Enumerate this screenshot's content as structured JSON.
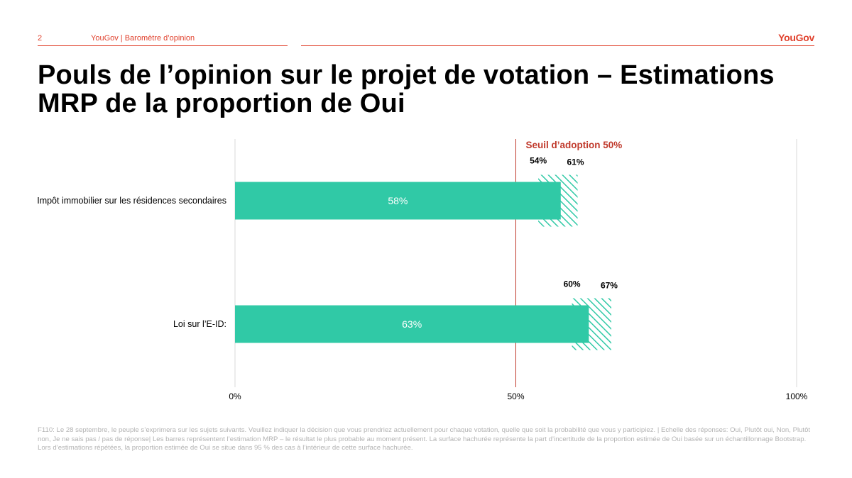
{
  "header": {
    "page_number": "2",
    "section": "YouGov | Baromètre d’opinion",
    "logo": "YouGov"
  },
  "title": "Pouls de l’opinion sur le projet de votation – Estimations MRP de la proportion de Oui",
  "colors": {
    "accent": "#e0402c",
    "bar": "#30c9a6",
    "threshold": "#c0392b",
    "grid": "#d9d9d9"
  },
  "chart_data": {
    "type": "bar",
    "orientation": "horizontal",
    "categories": [
      "Impôt immobilier sur les résidences secondaires",
      "Loi sur l’E-ID:"
    ],
    "values": [
      58,
      63
    ],
    "value_labels": [
      "58%",
      "63%"
    ],
    "interval_low": [
      54,
      60
    ],
    "interval_high": [
      61,
      67
    ],
    "interval_low_labels": [
      "54%",
      "60%"
    ],
    "interval_high_labels": [
      "61%",
      "67%"
    ],
    "xlim": [
      0,
      100
    ],
    "xticks": [
      0,
      50,
      100
    ],
    "xtick_labels": [
      "0%",
      "50%",
      "100%"
    ],
    "threshold": {
      "value": 50,
      "label": "Seuil d’adoption 50%"
    },
    "grid": true
  },
  "footnote": "F110: Le 28 septembre, le peuple s’exprimera sur les sujets suivants. Veuillez indiquer la décision que vous prendriez actuellement pour chaque votation, quelle que soit la probabilité que vous y participiez. | Echelle des réponses: Oui, Plutôt oui, Non, Plutôt non, Je ne sais pas / pas de réponse| Les barres représentent l’estimation MRP – le résultat le plus probable au moment présent. La surface hachurée représente la part d’incertitude de la proportion estimée de Oui basée sur un échantillonnage Bootstrap. Lors d’estimations répétées, la proportion estimée de Oui se situe dans 95 % des cas à l’intérieur de cette surface hachurée."
}
